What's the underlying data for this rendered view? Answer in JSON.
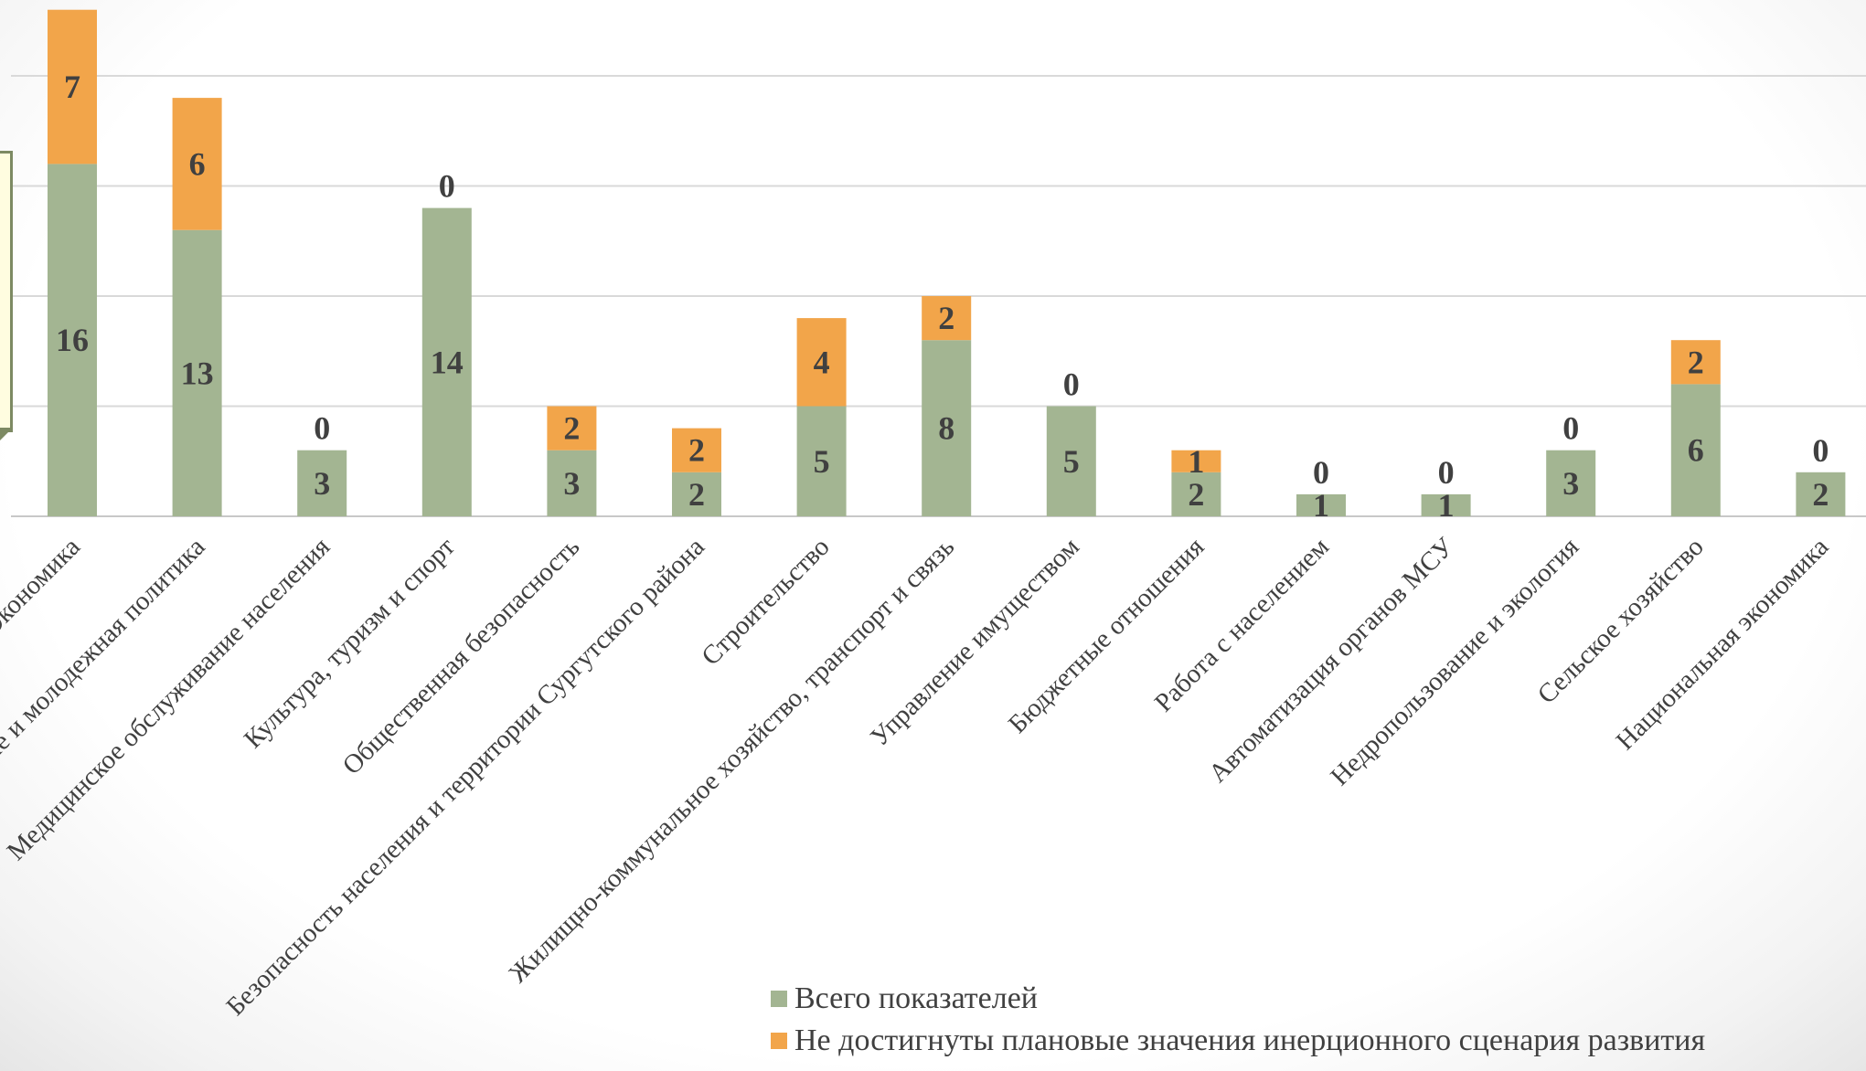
{
  "chart_data": {
    "type": "bar",
    "stacked": true,
    "categories": [
      "Экономика",
      "Образование и молодежная политика",
      "Медицинское обслуживание населения",
      "Культура, туризм и спорт",
      "Общественная безопасность",
      "Безопасность населения и территории Сургутского района",
      "Строительство",
      "Жилищно-коммунальное хозяйство, транспорт и связь",
      "Управление имуществом",
      "Бюджетные отношения",
      "Работа с населением",
      "Автоматизация органов МСУ",
      "Недропользование и экология",
      "Сельское хозяйство",
      "Национальная экономика"
    ],
    "series": [
      {
        "name": "Всего показателей",
        "color": "#a3b592",
        "values": [
          16,
          13,
          3,
          14,
          3,
          2,
          5,
          8,
          5,
          2,
          1,
          1,
          3,
          6,
          2
        ]
      },
      {
        "name": "Не достигнуты плановые значения инерционного сценария развития",
        "color": "#f2a54a",
        "values": [
          7,
          6,
          0,
          0,
          2,
          2,
          4,
          2,
          0,
          1,
          0,
          0,
          0,
          2,
          0
        ]
      }
    ],
    "ylim": [
      0,
      25
    ],
    "grid": true,
    "legend_position": "bottom-right",
    "label_rotation_degrees": -45
  }
}
